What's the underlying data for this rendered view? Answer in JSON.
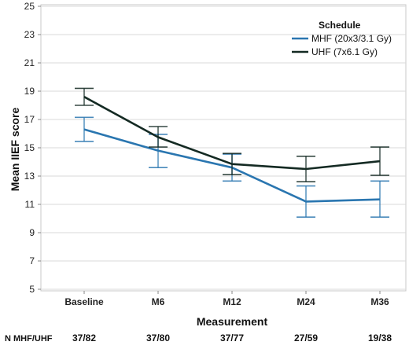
{
  "chart_data": {
    "type": "line",
    "xlabel": "Measurement",
    "ylabel": "Mean IIEF score",
    "categories": [
      "Baseline",
      "M6",
      "M12",
      "M24",
      "M36"
    ],
    "ylim": [
      5,
      25
    ],
    "yticks": [
      5,
      7,
      9,
      11,
      13,
      15,
      17,
      19,
      21,
      23,
      25
    ],
    "grid": "horizontal",
    "legend": {
      "title": "Schedule",
      "placement": "top-right"
    },
    "series": [
      {
        "name": "MHF (20x3/3.1 Gy)",
        "color": "#2a76b0",
        "values": [
          16.3,
          14.8,
          13.6,
          11.2,
          11.35
        ],
        "error_low": [
          15.45,
          13.6,
          12.65,
          10.1,
          10.1
        ],
        "error_high": [
          17.15,
          15.95,
          14.55,
          12.3,
          12.65
        ]
      },
      {
        "name": "UHF (7x6.1 Gy)",
        "color": "#142a23",
        "values": [
          18.6,
          15.75,
          13.85,
          13.5,
          14.05
        ],
        "error_low": [
          18.0,
          15.05,
          13.1,
          12.6,
          13.05
        ],
        "error_high": [
          19.2,
          16.5,
          14.6,
          14.4,
          15.05
        ]
      }
    ],
    "n_row": {
      "label": "N MHF/UHF",
      "values": [
        "37/82",
        "37/80",
        "37/77",
        "27/59",
        "19/38"
      ]
    }
  }
}
